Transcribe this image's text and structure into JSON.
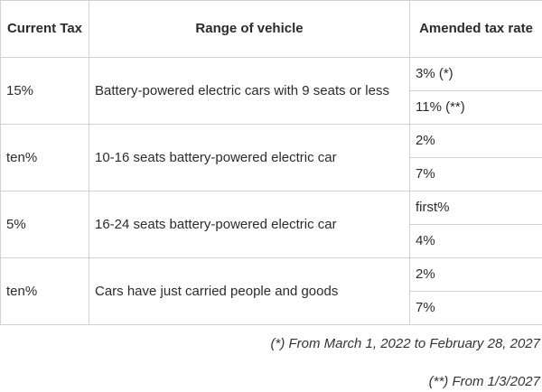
{
  "table": {
    "headers": {
      "current_tax": "Current Tax",
      "range": "Range of vehicle",
      "amended": "Amended tax rate"
    },
    "rows": [
      {
        "current_tax": "15%",
        "range": "Battery-powered electric cars with 9 seats or less",
        "rates": [
          "3% (*)",
          "11% (**)"
        ]
      },
      {
        "current_tax": "ten%",
        "range": "10-16 seats battery-powered electric car",
        "rates": [
          "2%",
          "7%"
        ]
      },
      {
        "current_tax": "5%",
        "range": "16-24 seats battery-powered electric car",
        "rates": [
          "first%",
          "4%"
        ]
      },
      {
        "current_tax": "ten%",
        "range": "Cars have just carried people and goods",
        "rates": [
          "2%",
          "7%"
        ]
      }
    ]
  },
  "notes": {
    "note_1": "(*) From March 1, 2022 to February 28, 2027",
    "note_2": "(**) From 1/3/2027"
  }
}
